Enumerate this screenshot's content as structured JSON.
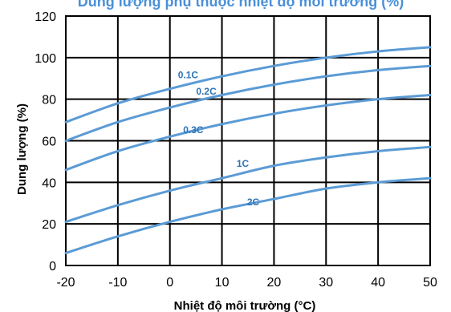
{
  "chart_data": {
    "type": "line",
    "title": "",
    "xlabel": "Nhiệt độ môi trường (°C)",
    "ylabel": "Dung lượng (%)",
    "xlim": [
      -20,
      50
    ],
    "ylim": [
      0,
      120
    ],
    "x_ticks": [
      -20,
      -10,
      0,
      10,
      20,
      30,
      40,
      50
    ],
    "y_ticks": [
      0,
      20,
      40,
      60,
      80,
      100,
      120
    ],
    "grid": true,
    "legend": "inline-labels",
    "line_color": "#5b9bd5",
    "label_color": "#2e74b5",
    "x": [
      -20,
      -10,
      0,
      10,
      20,
      30,
      40,
      50
    ],
    "series": [
      {
        "name": "0.1C",
        "values": [
          69,
          78,
          85,
          91,
          96,
          100,
          103,
          105
        ]
      },
      {
        "name": "0.2C",
        "values": [
          60,
          69,
          76,
          82,
          87,
          91,
          94,
          96
        ]
      },
      {
        "name": "0.3C",
        "values": [
          46,
          55,
          62,
          68,
          73,
          77,
          80,
          82
        ]
      },
      {
        "name": "1C",
        "values": [
          21,
          29,
          36,
          42,
          48,
          52,
          55,
          57
        ]
      },
      {
        "name": "2C",
        "values": [
          6,
          14,
          21,
          27,
          32,
          37,
          40,
          42
        ]
      }
    ]
  },
  "header_partial": "Dung lượng phụ thuộc nhiệt độ môi trường (%)"
}
